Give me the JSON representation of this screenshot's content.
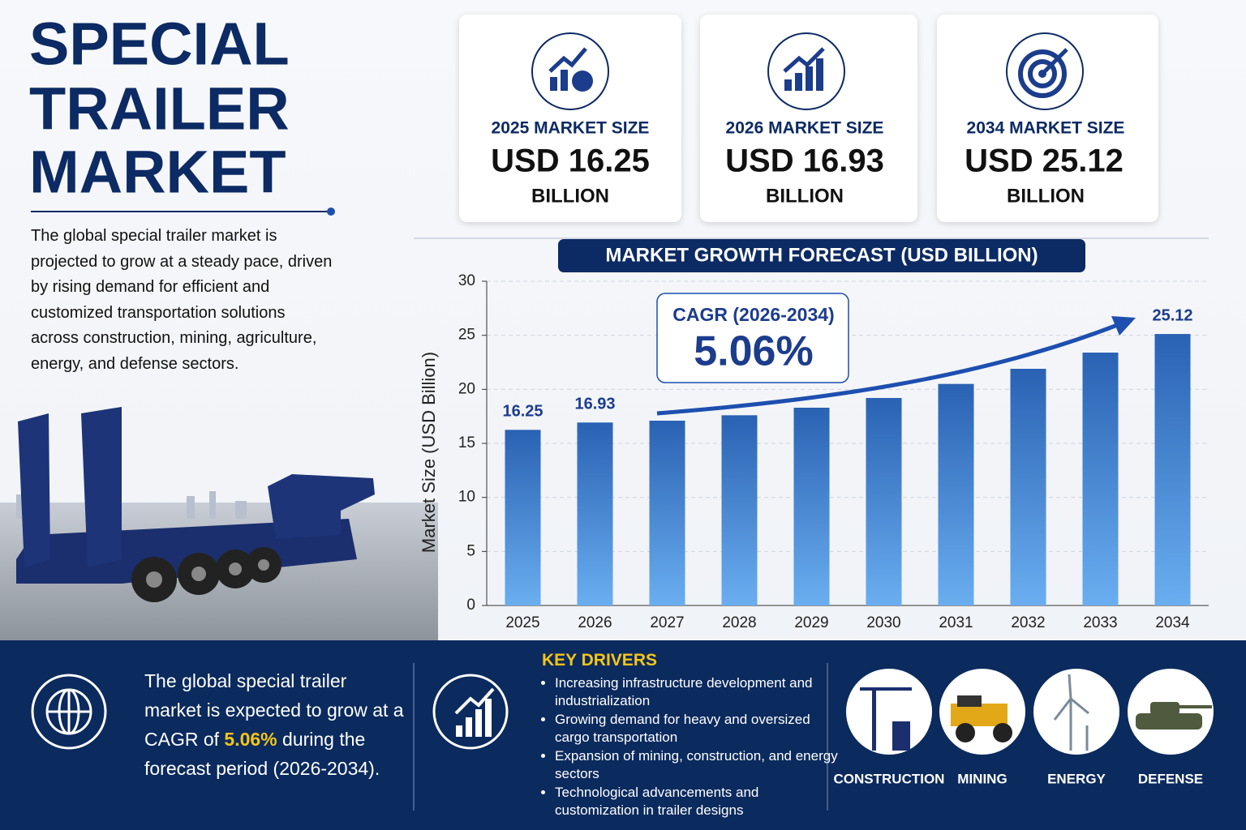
{
  "header": {
    "title_lines": [
      "SPECIAL",
      "TRAILER",
      "MARKET"
    ],
    "description": "The global special trailer market is projected to grow at a steady pace, driven by rising demand for efficient and customized transportation solutions across construction, mining, agriculture, energy, and defense sectors."
  },
  "cards": [
    {
      "label": "2025 MARKET SIZE",
      "value": "USD 16.25",
      "unit": "BILLION"
    },
    {
      "label": "2026 MARKET SIZE",
      "value": "USD 16.93",
      "unit": "BILLION"
    },
    {
      "label": "2034 MARKET SIZE",
      "value": "USD 25.12",
      "unit": "BILLION"
    }
  ],
  "chart_data": {
    "type": "bar",
    "title": "MARKET GROWTH FORECAST (USD BILLION)",
    "y_label": "Market Size (USD Billion)",
    "categories": [
      "2025",
      "2026",
      "2027",
      "2028",
      "2029",
      "2030",
      "2031",
      "2032",
      "2033",
      "2034"
    ],
    "values": [
      16.25,
      16.93,
      17.1,
      17.6,
      18.3,
      19.2,
      20.5,
      21.9,
      23.4,
      25.12
    ],
    "value_labels": [
      "16.25",
      "16.93",
      null,
      null,
      null,
      null,
      null,
      null,
      null,
      "25.12"
    ],
    "color": "#2a62b3",
    "ylim": [
      0,
      30
    ],
    "yticks": [
      0,
      5,
      10,
      15,
      20,
      25,
      30
    ],
    "grid": true,
    "annotation": {
      "label": "CAGR (2026-2034)",
      "value": "5.06%"
    }
  },
  "summary": {
    "before": "The global special trailer market is expected to grow at a CAGR of",
    "highlight": "5.06%",
    "after": "during the forecast period (2026-2034)."
  },
  "drivers": {
    "title": "KEY DRIVERS",
    "items": [
      "Increasing infrastructure development and industrialization",
      "Growing demand for heavy and oversized cargo transportation",
      "Expansion of mining, construction, and energy sectors",
      "Technological advancements and customization in trailer designs"
    ]
  },
  "sectors": [
    "CONSTRUCTION",
    "MINING",
    "ENERGY",
    "DEFENSE"
  ]
}
